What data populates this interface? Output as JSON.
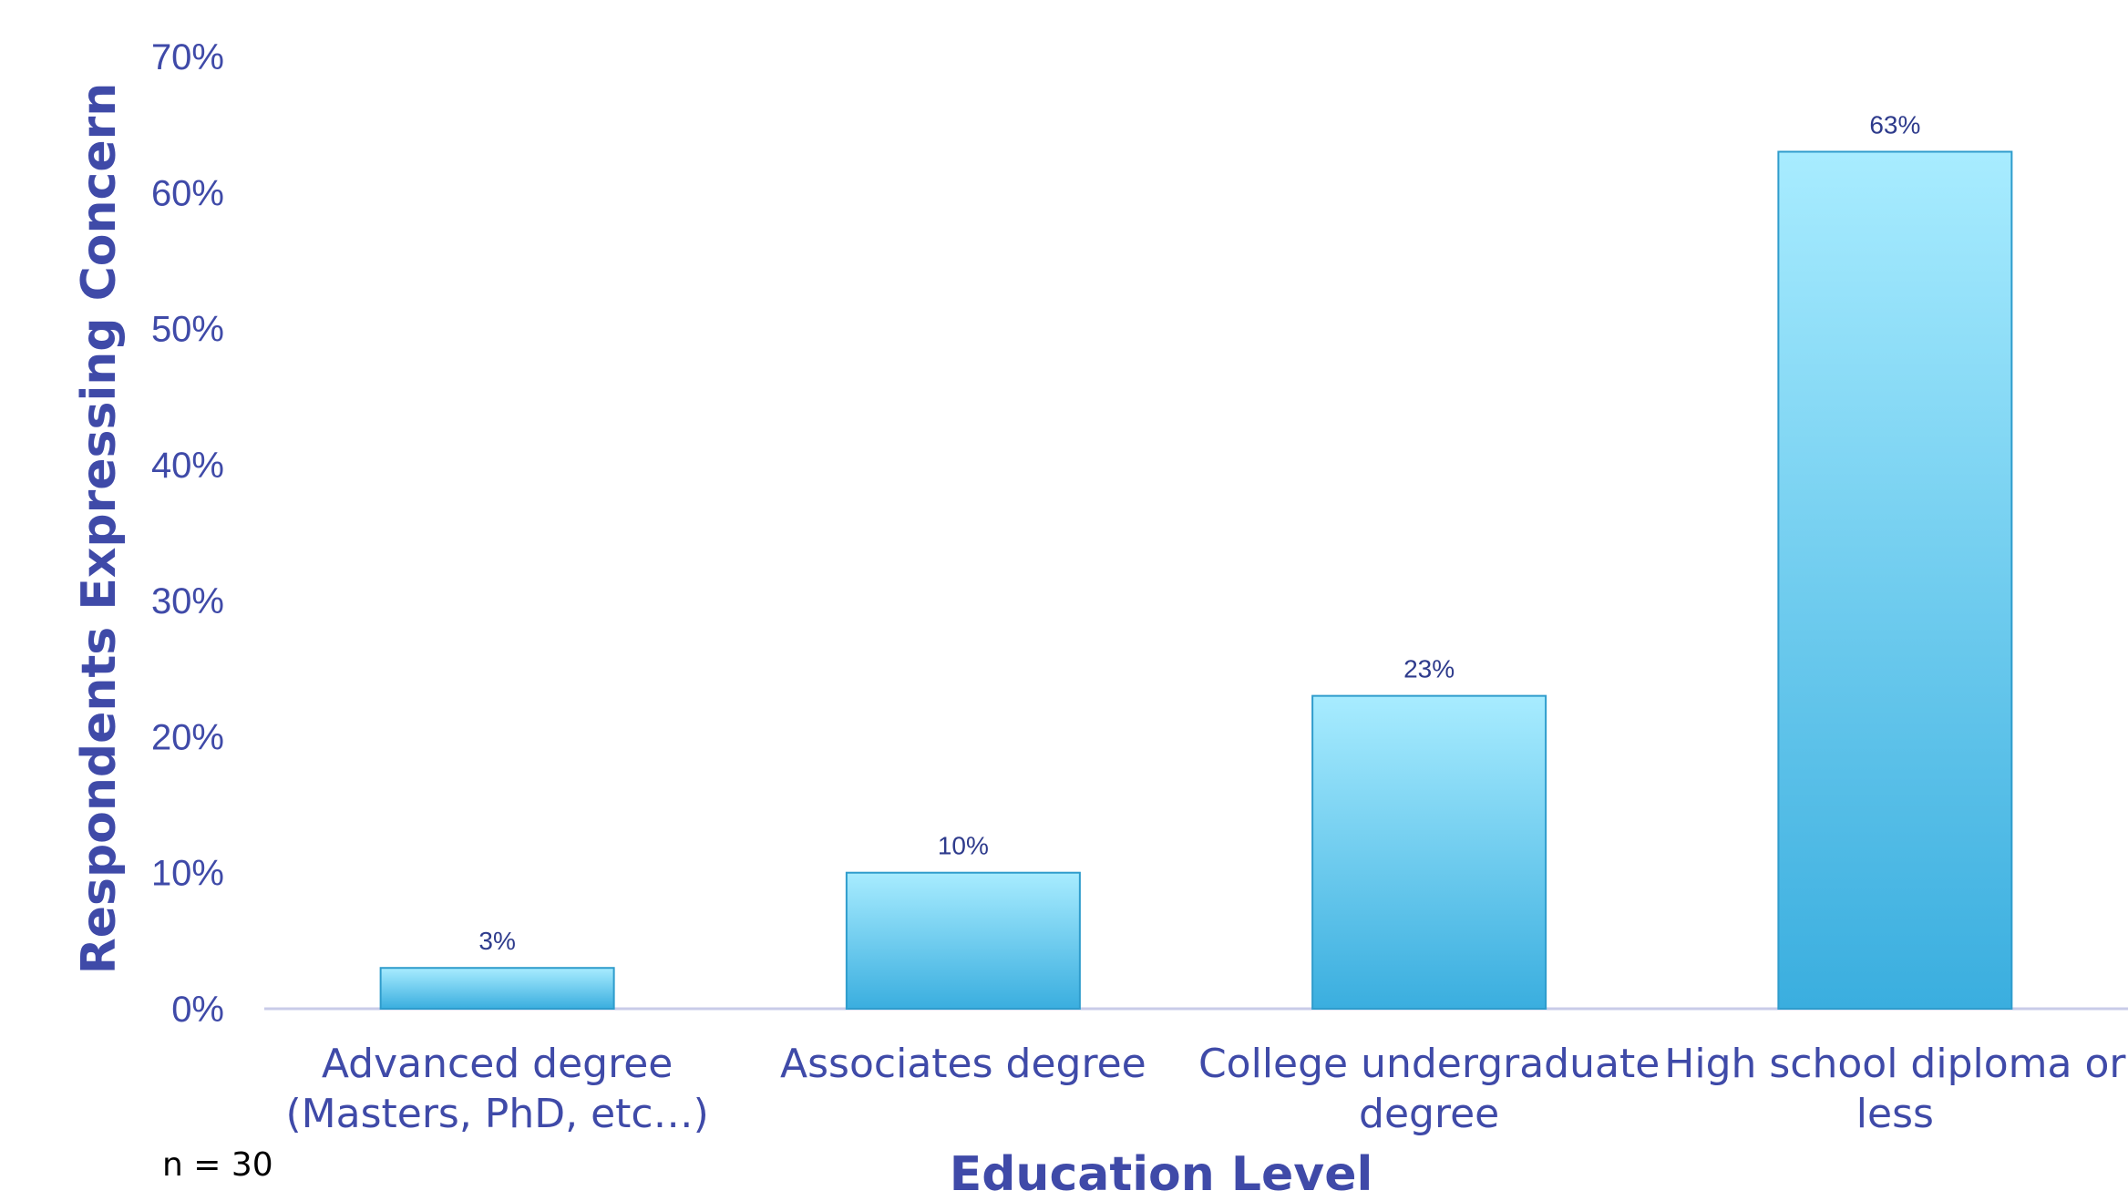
{
  "chart_data": {
    "type": "bar",
    "title": "",
    "xlabel": "Education Level",
    "ylabel": "Respondents Expressing Concern",
    "categories": [
      [
        "Advanced degree",
        "(Masters, PhD, etc…)"
      ],
      [
        "Associates degree"
      ],
      [
        "College undergraduate",
        "degree"
      ],
      [
        "High school diploma or",
        "less"
      ]
    ],
    "values": [
      3,
      10,
      23,
      63
    ],
    "data_labels": [
      "3%",
      "10%",
      "23%",
      "63%"
    ],
    "ylim": [
      0,
      70
    ],
    "yticks": [
      "0%",
      "10%",
      "20%",
      "30%",
      "40%",
      "50%",
      "60%",
      "70%"
    ],
    "grid": false,
    "legend": "none",
    "colors": {
      "bar_top": "#a8ecff",
      "bar_bottom": "#3aaedf",
      "bar_edge": "#2f9ccc",
      "axis": "#c9cbe8",
      "text": "#3f4aa8"
    }
  },
  "note": "n = 30"
}
